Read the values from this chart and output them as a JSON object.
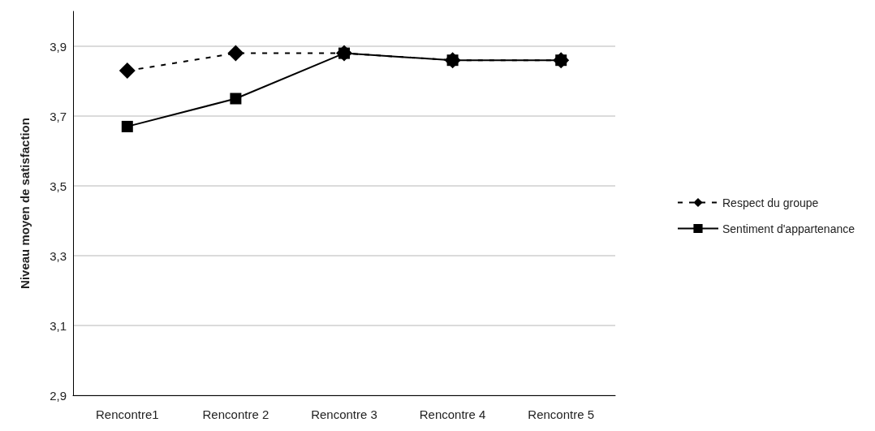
{
  "chart_data": {
    "type": "line",
    "ylabel": "Niveau moyen de satisfaction",
    "categories": [
      "Rencontre1",
      "Rencontre 2",
      "Rencontre 3",
      "Rencontre 4",
      "Rencontre 5"
    ],
    "series": [
      {
        "name": "Respect du groupe",
        "color": "#000000",
        "marker": "diamond",
        "line_style": "dashed",
        "values": [
          3.83,
          3.88,
          3.88,
          3.86,
          3.86
        ]
      },
      {
        "name": "Sentiment d'appartenance",
        "color": "#000000",
        "marker": "square",
        "line_style": "solid",
        "values": [
          3.67,
          3.75,
          3.88,
          3.86,
          3.86
        ]
      }
    ],
    "ylim": [
      2.9,
      4.0
    ],
    "yticks": [
      {
        "value": 2.9,
        "label": "2,9"
      },
      {
        "value": 3.1,
        "label": "3,1"
      },
      {
        "value": 3.3,
        "label": "3,3"
      },
      {
        "value": 3.5,
        "label": "3,5"
      },
      {
        "value": 3.7,
        "label": "3,7"
      },
      {
        "value": 3.9,
        "label": "3,9"
      }
    ],
    "grid": "y",
    "legend": "right"
  }
}
